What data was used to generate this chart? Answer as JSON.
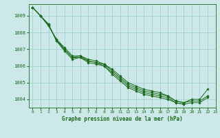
{
  "title": "Graphe pression niveau de la mer (hPa)",
  "background_color": "#cce8e8",
  "grid_color": "#99cccc",
  "line_color": "#1a6b1a",
  "marker_color": "#1a6b1a",
  "xlim": [
    -0.5,
    23
  ],
  "ylim": [
    1003.5,
    1009.7
  ],
  "yticks": [
    1004,
    1005,
    1006,
    1007,
    1008,
    1009
  ],
  "xticks": [
    0,
    1,
    2,
    3,
    4,
    5,
    6,
    7,
    8,
    9,
    10,
    11,
    12,
    13,
    14,
    15,
    16,
    17,
    18,
    19,
    20,
    21,
    22,
    23
  ],
  "series": [
    [
      1009.5,
      1009.0,
      1008.5,
      1007.5,
      1006.9,
      1006.4,
      1006.5,
      1006.2,
      1006.1,
      1006.0,
      1005.5,
      1005.1,
      1004.7,
      1004.5,
      1004.3,
      1004.2,
      1004.1,
      1004.0,
      1003.8,
      1003.7,
      null,
      null,
      null,
      null
    ],
    [
      1009.5,
      1009.0,
      1008.5,
      1007.5,
      1007.0,
      1006.5,
      1006.5,
      1006.3,
      1006.2,
      1006.0,
      1005.6,
      1005.2,
      1004.8,
      1004.6,
      1004.4,
      1004.3,
      1004.2,
      1004.1,
      1003.8,
      1003.7,
      1003.8,
      1003.8,
      1004.1,
      null
    ],
    [
      1009.5,
      1009.0,
      1008.4,
      1007.6,
      1007.0,
      1006.5,
      1006.6,
      1006.3,
      1006.2,
      1006.1,
      1005.7,
      1005.3,
      1004.9,
      1004.7,
      1004.5,
      1004.4,
      1004.3,
      1004.2,
      1003.9,
      1003.8,
      1003.9,
      1003.9,
      1004.2,
      null
    ],
    [
      1009.5,
      1009.0,
      1008.4,
      1007.6,
      1007.1,
      1006.6,
      1006.6,
      1006.4,
      1006.3,
      1006.1,
      1005.8,
      1005.4,
      1005.0,
      1004.8,
      1004.6,
      1004.5,
      1004.4,
      1004.2,
      1003.9,
      1003.8,
      1004.0,
      1004.0,
      1004.6,
      null
    ]
  ]
}
